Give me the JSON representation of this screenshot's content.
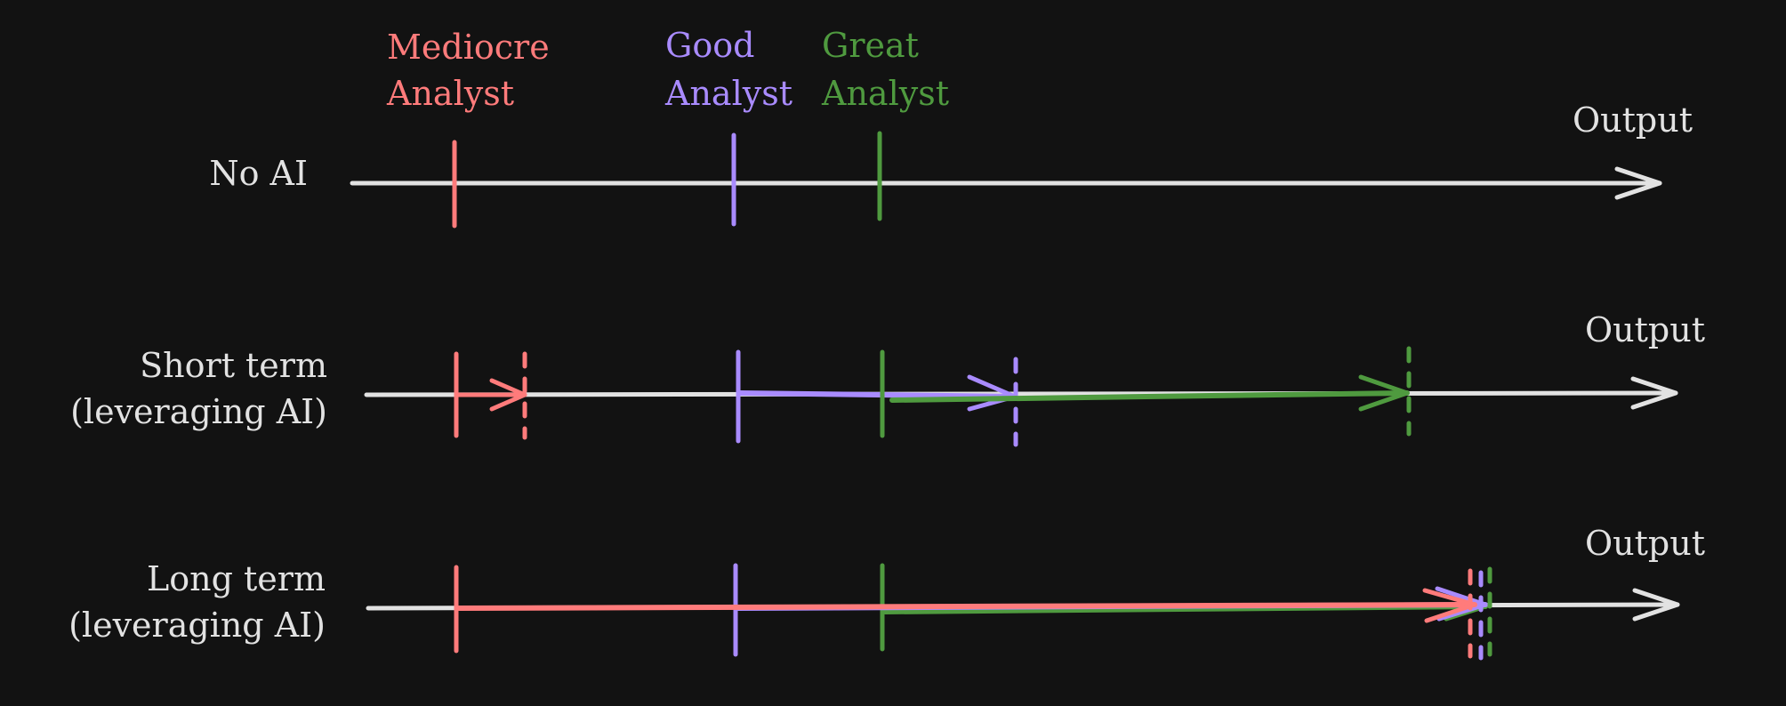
{
  "colors": {
    "background": "#121212",
    "axis": "#e2e2e2",
    "mediocre": "#ff7b7b",
    "good": "#a98bff",
    "great": "#4f9a3f"
  },
  "legend": {
    "mediocre": [
      "Mediocre",
      "Analyst"
    ],
    "good": [
      "Good",
      "Analyst"
    ],
    "great": [
      "Great",
      "Analyst"
    ]
  },
  "rows": {
    "no_ai": {
      "label": "No AI",
      "axis_label": "Output"
    },
    "short": {
      "label_line1": "Short term",
      "label_line2": "(leveraging AI)",
      "axis_label": "Output"
    },
    "long": {
      "label_line1": "Long term",
      "label_line2": "(leveraging AI)",
      "axis_label": "Output"
    }
  }
}
